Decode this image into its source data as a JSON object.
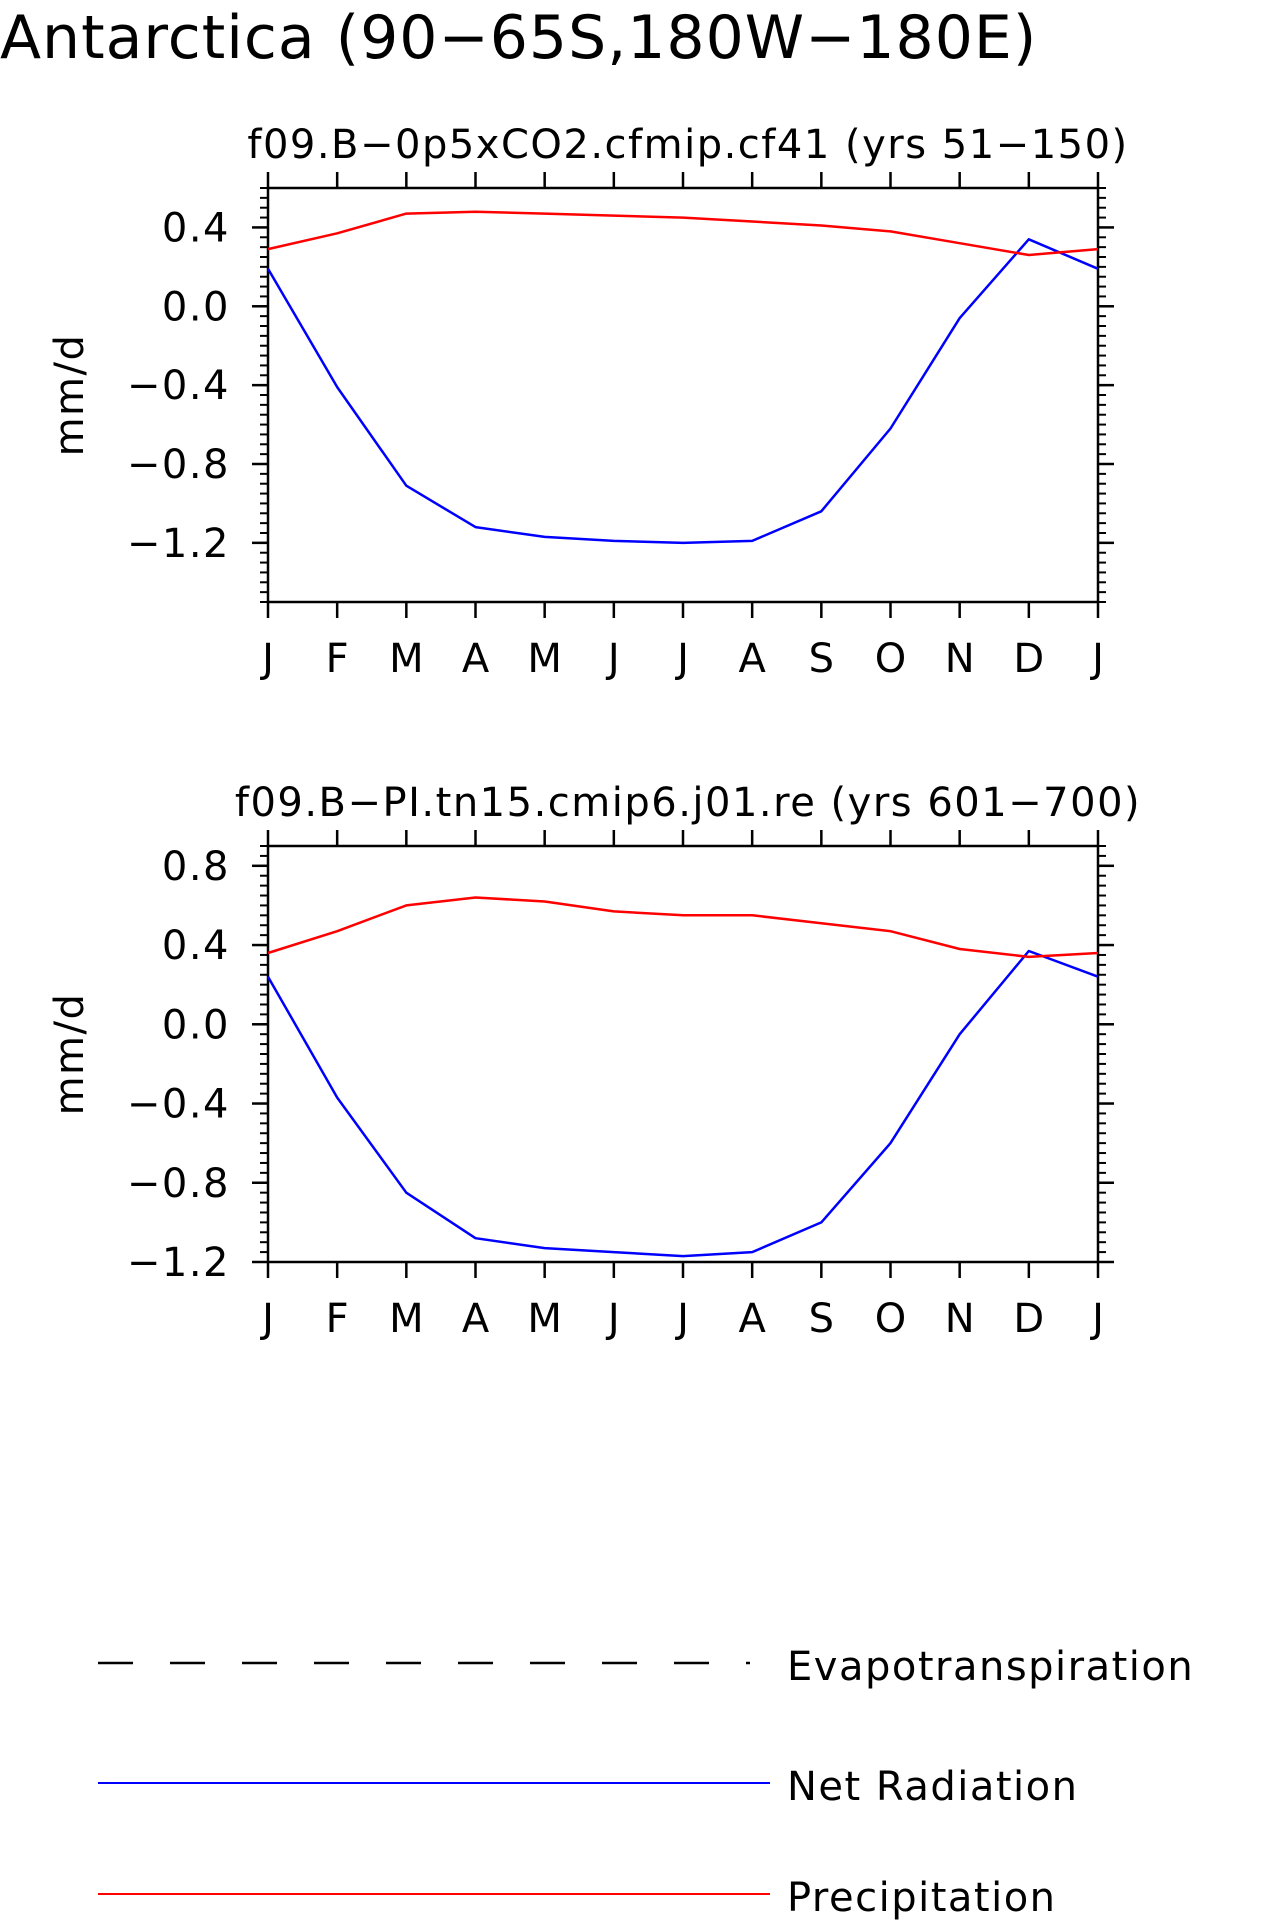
{
  "figure": {
    "title": "Antarctica (90−65S,180W−180E)"
  },
  "legend": {
    "items": [
      {
        "label": "Evapotranspiration",
        "color": "#000000",
        "style": "dashed"
      },
      {
        "label": "Net Radiation",
        "color": "#0000ff",
        "style": "solid"
      },
      {
        "label": "Precipitation",
        "color": "#ff0000",
        "style": "solid"
      }
    ]
  },
  "chart_data": [
    {
      "type": "line",
      "title": "f09.B−0p5xCO2.cfmip.cf41 (yrs 51−150)",
      "xlabel": "",
      "ylabel": "mm/d",
      "categories": [
        "J",
        "F",
        "M",
        "A",
        "M",
        "J",
        "J",
        "A",
        "S",
        "O",
        "N",
        "D",
        "J"
      ],
      "ylim": [
        -1.5,
        0.6
      ],
      "yticks": [
        0.4,
        0.0,
        -0.4,
        -0.8,
        -1.2
      ],
      "ytick_labels": [
        "0.4",
        "0.0",
        "−0.4",
        "−0.8",
        "−1.2"
      ],
      "series": [
        {
          "name": "Net Radiation",
          "color": "#0000ff",
          "values": [
            0.19,
            -0.41,
            -0.91,
            -1.12,
            -1.17,
            -1.19,
            -1.2,
            -1.19,
            -1.04,
            -0.62,
            -0.06,
            0.34,
            0.19
          ]
        },
        {
          "name": "Precipitation",
          "color": "#ff0000",
          "values": [
            0.29,
            0.37,
            0.47,
            0.48,
            0.47,
            0.46,
            0.45,
            0.43,
            0.41,
            0.38,
            0.32,
            0.26,
            0.29
          ]
        }
      ]
    },
    {
      "type": "line",
      "title": "f09.B−PI.tn15.cmip6.j01.re (yrs 601−700)",
      "xlabel": "",
      "ylabel": "mm/d",
      "categories": [
        "J",
        "F",
        "M",
        "A",
        "M",
        "J",
        "J",
        "A",
        "S",
        "O",
        "N",
        "D",
        "J"
      ],
      "ylim": [
        -1.2,
        0.9
      ],
      "yticks": [
        0.8,
        0.4,
        0.0,
        -0.4,
        -0.8,
        -1.2
      ],
      "ytick_labels": [
        "0.8",
        "0.4",
        "0.0",
        "−0.4",
        "−0.8",
        "−1.2"
      ],
      "series": [
        {
          "name": "Net Radiation",
          "color": "#0000ff",
          "values": [
            0.24,
            -0.37,
            -0.85,
            -1.08,
            -1.13,
            -1.15,
            -1.17,
            -1.15,
            -1.0,
            -0.6,
            -0.05,
            0.37,
            0.24
          ]
        },
        {
          "name": "Precipitation",
          "color": "#ff0000",
          "values": [
            0.36,
            0.47,
            0.6,
            0.64,
            0.62,
            0.57,
            0.55,
            0.55,
            0.51,
            0.47,
            0.38,
            0.34,
            0.36
          ]
        }
      ]
    }
  ]
}
